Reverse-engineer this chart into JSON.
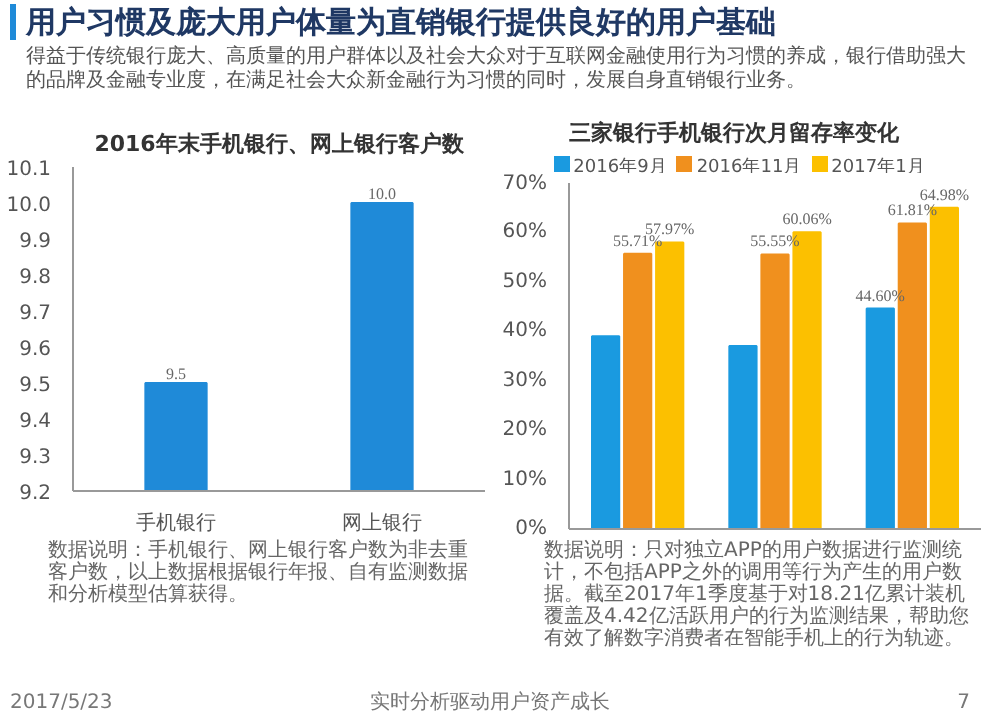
{
  "chart_data": [
    {
      "type": "other",
      "title": "用户习惯及庞大用户体量为直销银行提供良好的用户基础",
      "annotations": [
        "得益于传统银行庞大、高质量的用户群体以及社会大众对于互联网金融使用行为习惯的养成，银行借助强大的品牌及金融专业度，在满足社会大众新金融行为习惯的同时，发展自身直销银行业务。"
      ]
    },
    {
      "type": "bar",
      "title": "2016年末手机银行、网上银行客户数",
      "categories": [
        "手机银行",
        "网上银行"
      ],
      "values": [
        9.5,
        10.0
      ],
      "value_labels": [
        "9.5",
        "10.0"
      ],
      "color": "#1f8ad8",
      "ylim": [
        9.2,
        10.1
      ],
      "yticks": [
        {
          "value": 9.2,
          "label": "9.2"
        },
        {
          "value": 9.3,
          "label": "9.3"
        },
        {
          "value": 9.4,
          "label": "9.4"
        },
        {
          "value": 9.5,
          "label": "9.5"
        },
        {
          "value": 9.6,
          "label": "9.6"
        },
        {
          "value": 9.7,
          "label": "9.7"
        },
        {
          "value": 9.8,
          "label": "9.8"
        },
        {
          "value": 9.9,
          "label": "9.9"
        },
        {
          "value": 10.0,
          "label": "10.0"
        },
        {
          "value": 10.1,
          "label": "10.1"
        }
      ],
      "grid": false,
      "annotations": [
        "数据说明：手机银行、网上银行客户数为非去重客户数，以上数据根据银行年报、自有监测数据和分析模型估算获得。"
      ]
    },
    {
      "type": "bar",
      "title": "三家银行手机银行次月留存率变化",
      "categories": [
        null,
        null,
        null
      ],
      "series": [
        {
          "name": "2016年9月",
          "color": "#1a9ae0",
          "values": [
            39,
            37,
            44.6
          ],
          "value_labels": [
            null,
            null,
            "44.60%"
          ]
        },
        {
          "name": "2016年11月",
          "color": "#f0901e",
          "values": [
            55.71,
            55.55,
            61.81
          ],
          "value_labels": [
            "55.71%",
            "55.55%",
            "61.81%"
          ]
        },
        {
          "name": "2017年1月",
          "color": "#fcc000",
          "values": [
            57.97,
            60.06,
            64.98
          ],
          "value_labels": [
            "57.97%",
            "60.06%",
            "64.98%"
          ]
        }
      ],
      "ylim": [
        0,
        70
      ],
      "yticks": [
        {
          "value": 0,
          "label": "0%"
        },
        {
          "value": 10,
          "label": "10%"
        },
        {
          "value": 20,
          "label": "20%"
        },
        {
          "value": 30,
          "label": "30%"
        },
        {
          "value": 40,
          "label": "40%"
        },
        {
          "value": 50,
          "label": "50%"
        },
        {
          "value": 60,
          "label": "60%"
        },
        {
          "value": 70,
          "label": "70%"
        }
      ],
      "grid": false,
      "legend": "top",
      "annotations": [
        "数据说明：只对独立APP的用户数据进行监测统计，不包括APP之外的调用等行为产生的用户数据。截至2017年1季度基于对18.21亿累计装机覆盖及4.42亿活跃用户的行为监测结果，帮助您有效了解数字消费者在智能手机上的行为轨迹。"
      ]
    },
    {
      "type": "other",
      "annotations": [
        "2017/5/23",
        "实时分析驱动用户资产成长",
        "7"
      ]
    }
  ]
}
